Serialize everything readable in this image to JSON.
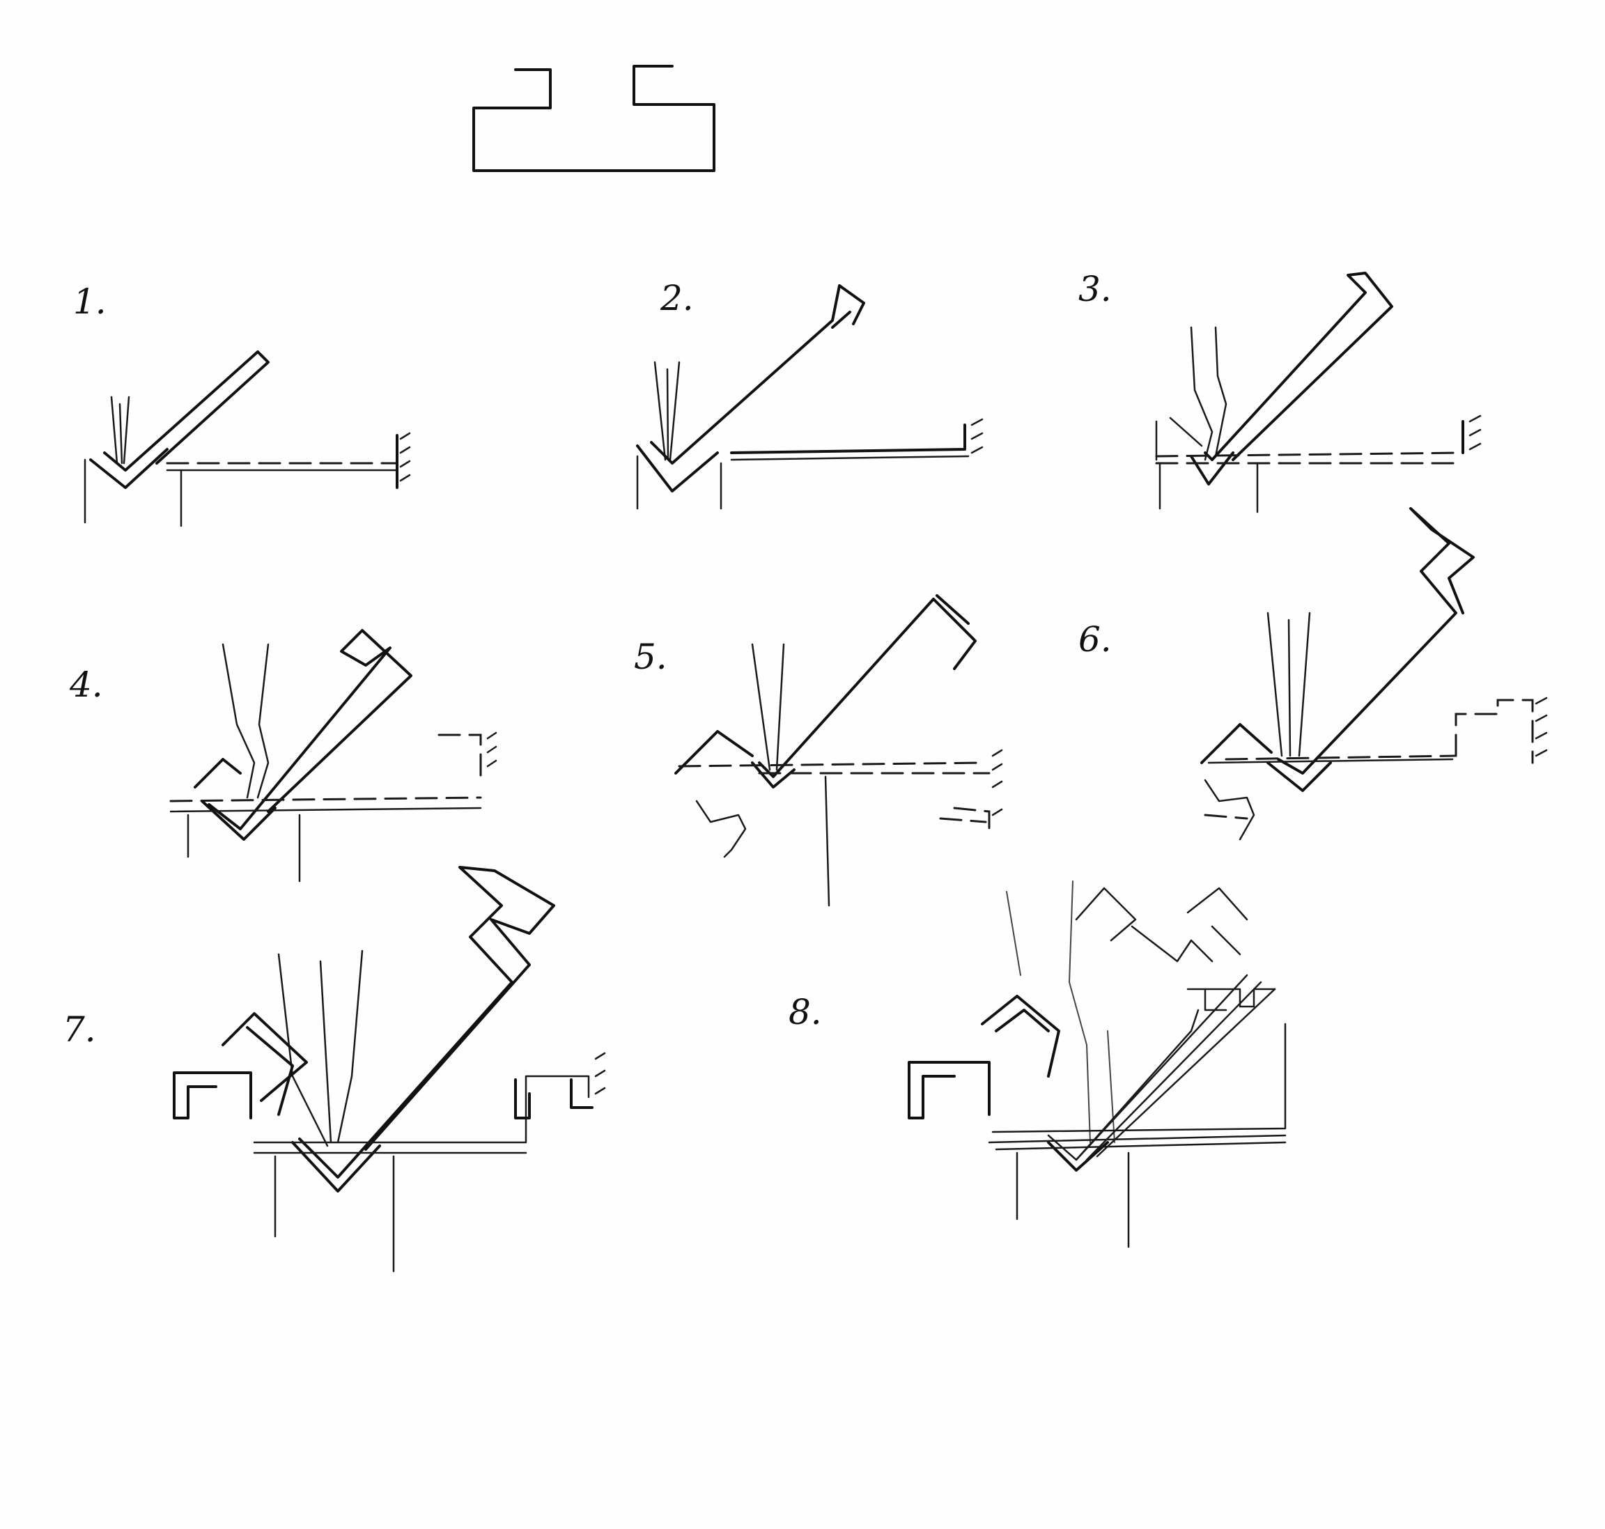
{
  "diagram": {
    "profile_label": "",
    "steps": [
      {
        "label": "1."
      },
      {
        "label": "2."
      },
      {
        "label": "3."
      },
      {
        "label": "4."
      },
      {
        "label": "5."
      },
      {
        "label": "6."
      },
      {
        "label": "7."
      },
      {
        "label": "8."
      }
    ]
  },
  "colors": {
    "ink": "#111111",
    "paper": "#fefefe"
  }
}
